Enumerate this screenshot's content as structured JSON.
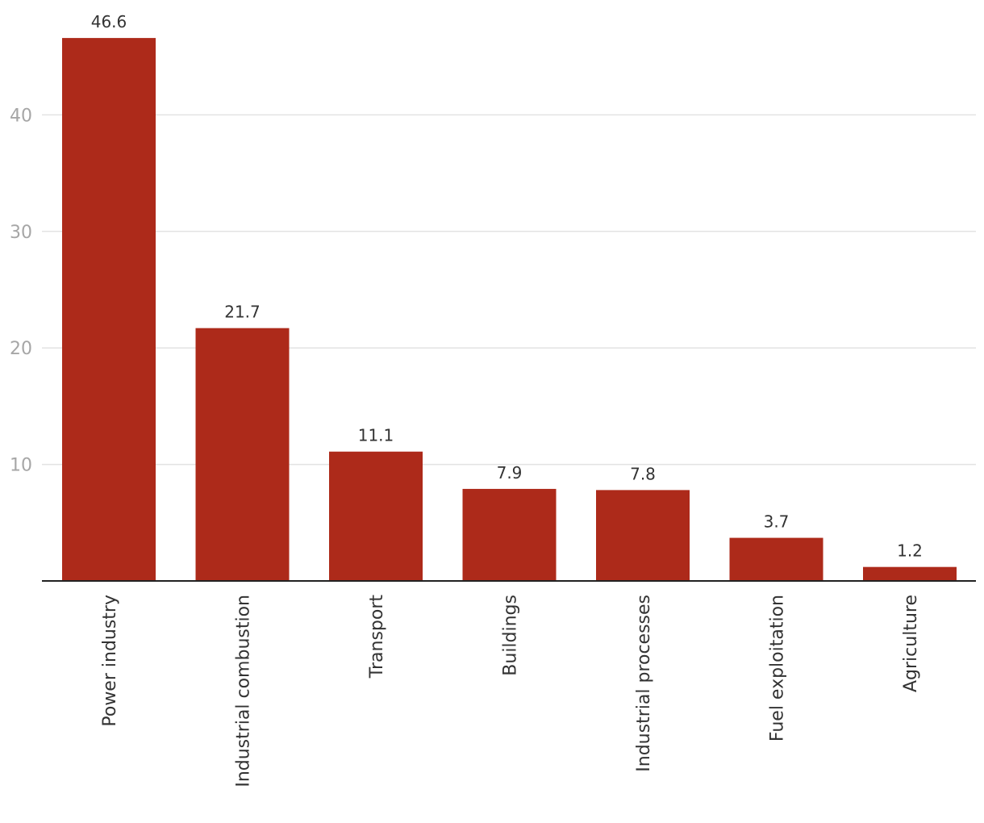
{
  "chart_data": {
    "type": "bar",
    "categories": [
      "Power industry",
      "Industrial combustion",
      "Transport",
      "Buildings",
      "Industrial processes",
      "Fuel exploitation",
      "Agriculture"
    ],
    "values": [
      46.6,
      21.7,
      11.1,
      7.9,
      7.8,
      3.7,
      1.2
    ],
    "data_labels": [
      "46.6",
      "21.7",
      "11.1",
      "7.9",
      "7.8",
      "3.7",
      "1.2"
    ],
    "ylim": [
      0,
      50
    ],
    "yticks": [
      10,
      20,
      30,
      40
    ],
    "ytick_labels": [
      "10",
      "20",
      "30",
      "40"
    ],
    "title": "",
    "xlabel": "",
    "ylabel": "",
    "grid": true,
    "legend": "none",
    "bar_color": "#ad2a1a",
    "grid_color": "#e3e3e3",
    "tick_color": "#a6a6a6"
  }
}
